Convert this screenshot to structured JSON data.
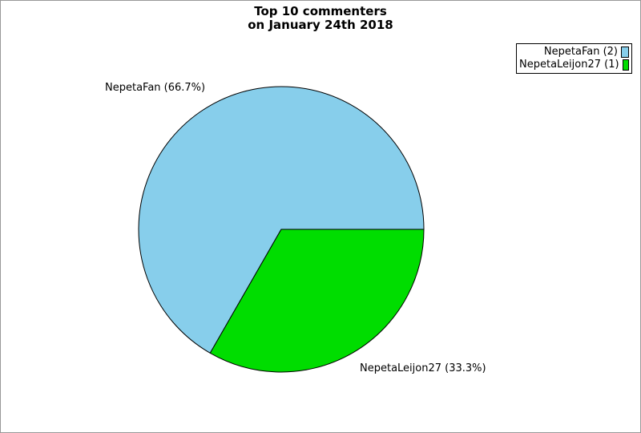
{
  "page": {
    "background": "#ffffff",
    "border_color": "#999999"
  },
  "title": {
    "line1": "Top 10 commenters",
    "line2": "on January 24th 2018"
  },
  "chart_data": {
    "type": "pie",
    "title": "Top 10 commenters on January 24th 2018",
    "total_comments": 3,
    "start_angle_deg": 0,
    "direction": "counterclockwise",
    "outline_color": "#000000",
    "legend_position": "top-right",
    "slices": [
      {
        "name": "NepetaFan",
        "value": 2,
        "percent": 66.7,
        "color": "#87CEEB",
        "outside_label": "NepetaFan (66.7%)",
        "legend_label": "NepetaFan (2)"
      },
      {
        "name": "NepetaLeijon27",
        "value": 1,
        "percent": 33.3,
        "color": "#00DD00",
        "outside_label": "NepetaLeijon27 (33.3%)",
        "legend_label": "NepetaLeijon27 (1)"
      }
    ]
  }
}
